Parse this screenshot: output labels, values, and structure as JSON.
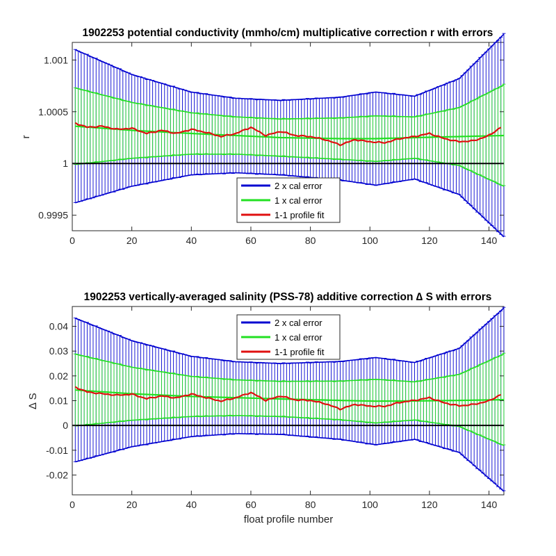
{
  "chart_data": [
    {
      "type": "line",
      "title": "1902253 potential conductivity (mmho/cm) multiplicative correction r with errors",
      "xlabel": "",
      "ylabel": "r",
      "xlim": [
        0,
        145
      ],
      "ylim": [
        0.99935,
        1.00117
      ],
      "xticks": [
        0,
        20,
        40,
        60,
        80,
        100,
        120,
        140
      ],
      "yticks": [
        0.9995,
        1,
        1.0005,
        1.001
      ],
      "ytick_labels": [
        "0.9995",
        "1",
        "1.0005",
        "1.001"
      ],
      "baseline": 1,
      "legend": {
        "placement": "bottom-center",
        "entries": [
          {
            "label": "2 x cal error",
            "color": "#0000d0"
          },
          {
            "label": "1 x cal error",
            "color": "#22e022"
          },
          {
            "label": "1-1 profile fit",
            "color": "#e01010"
          }
        ]
      },
      "error_envelope": {
        "x": [
          1,
          20,
          40,
          55,
          70,
          90,
          102,
          115,
          130,
          145
        ],
        "fit": [
          1.00036,
          1.00032,
          1.00029,
          1.00027,
          1.00025,
          1.00024,
          1.00024,
          1.00025,
          1.00026,
          1.00027
        ],
        "err1": [
          0.00037,
          0.00027,
          0.0002,
          0.00018,
          0.00018,
          0.0002,
          0.00022,
          0.0002,
          0.00028,
          0.00049
        ],
        "err2": [
          0.00074,
          0.00054,
          0.0004,
          0.00036,
          0.00036,
          0.0004,
          0.00045,
          0.0004,
          0.00056,
          0.00098
        ]
      },
      "series": [
        {
          "name": "1-1 profile fit",
          "color": "#e01010",
          "x": [
            1,
            5,
            10,
            15,
            20,
            25,
            30,
            35,
            40,
            45,
            50,
            55,
            60,
            65,
            70,
            75,
            80,
            85,
            90,
            95,
            100,
            105,
            110,
            115,
            120,
            125,
            130,
            135,
            140,
            144
          ],
          "y": [
            1.00039,
            1.00035,
            1.00036,
            1.00033,
            1.00034,
            1.00029,
            1.00032,
            1.00029,
            1.00033,
            1.0003,
            1.00026,
            1.00029,
            1.00035,
            1.00027,
            1.00031,
            1.00027,
            1.00026,
            1.00023,
            1.00018,
            1.00023,
            1.00021,
            1.0002,
            1.00024,
            1.00026,
            1.00029,
            1.00024,
            1.00021,
            1.00022,
            1.00027,
            1.00035
          ]
        }
      ]
    },
    {
      "type": "line",
      "title": "1902253 vertically-averaged salinity (PSS-78) additive correction ∆ S with errors",
      "xlabel": "float profile number",
      "ylabel": "∆ S",
      "xlim": [
        0,
        145
      ],
      "ylim": [
        -0.028,
        0.048
      ],
      "xticks": [
        0,
        20,
        40,
        60,
        80,
        100,
        120,
        140
      ],
      "yticks": [
        -0.02,
        -0.01,
        0,
        0.01,
        0.02,
        0.03,
        0.04
      ],
      "ytick_labels": [
        "-0.02",
        "-0.01",
        "0",
        "0.01",
        "0.02",
        "0.03",
        "0.04"
      ],
      "baseline": 0,
      "legend": {
        "placement": "top-center",
        "entries": [
          {
            "label": "2 x cal error",
            "color": "#0000d0"
          },
          {
            "label": "1 x cal error",
            "color": "#22e022"
          },
          {
            "label": "1-1 profile fit",
            "color": "#e01010"
          }
        ]
      },
      "error_envelope": {
        "x": [
          1,
          20,
          40,
          55,
          70,
          90,
          102,
          115,
          130,
          145
        ],
        "fit": [
          0.0143,
          0.0128,
          0.0117,
          0.0112,
          0.0107,
          0.0101,
          0.0098,
          0.0099,
          0.0101,
          0.0104
        ],
        "err1": [
          0.0145,
          0.0107,
          0.0081,
          0.0072,
          0.0071,
          0.0078,
          0.0088,
          0.0077,
          0.0105,
          0.0185
        ],
        "err2": [
          0.029,
          0.0214,
          0.0162,
          0.0145,
          0.0143,
          0.0157,
          0.0176,
          0.0155,
          0.021,
          0.037
        ]
      },
      "series": [
        {
          "name": "1-1 profile fit",
          "color": "#e01010",
          "x": [
            1,
            5,
            10,
            15,
            20,
            25,
            30,
            35,
            40,
            45,
            50,
            55,
            60,
            65,
            70,
            75,
            80,
            85,
            90,
            95,
            100,
            105,
            110,
            115,
            120,
            125,
            130,
            135,
            140,
            144
          ],
          "y": [
            0.0155,
            0.0135,
            0.0128,
            0.0122,
            0.0126,
            0.0108,
            0.0119,
            0.0111,
            0.0127,
            0.0112,
            0.0098,
            0.0112,
            0.0133,
            0.0101,
            0.0119,
            0.0103,
            0.0101,
            0.0088,
            0.0066,
            0.0085,
            0.0078,
            0.0077,
            0.0093,
            0.0101,
            0.0112,
            0.0091,
            0.0079,
            0.0085,
            0.0099,
            0.0125
          ]
        }
      ]
    }
  ]
}
